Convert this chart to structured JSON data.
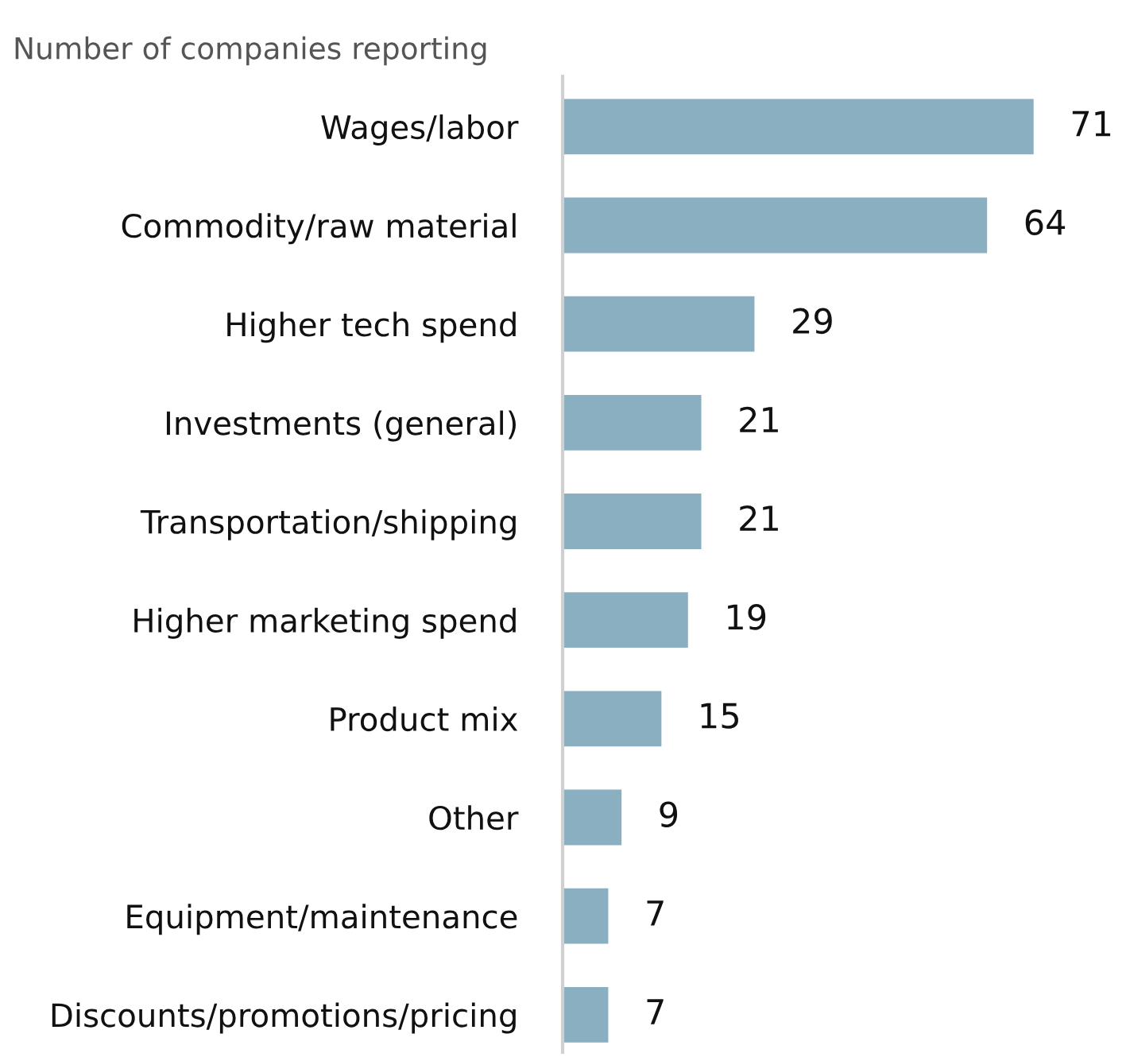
{
  "chart_data": {
    "type": "bar",
    "orientation": "horizontal",
    "title": "Number of companies reporting",
    "categories": [
      "Wages/labor",
      "Commodity/raw material",
      "Higher tech spend",
      "Investments (general)",
      "Transportation/shipping",
      "Higher marketing spend",
      "Product mix",
      "Other",
      "Equipment/maintenance",
      "Discounts/promotions/pricing"
    ],
    "values": [
      71,
      64,
      29,
      21,
      21,
      19,
      15,
      9,
      7,
      7
    ],
    "color": "#8aafc0",
    "data_labels": true,
    "grid": false,
    "legend": false,
    "tick_labels": "y"
  }
}
